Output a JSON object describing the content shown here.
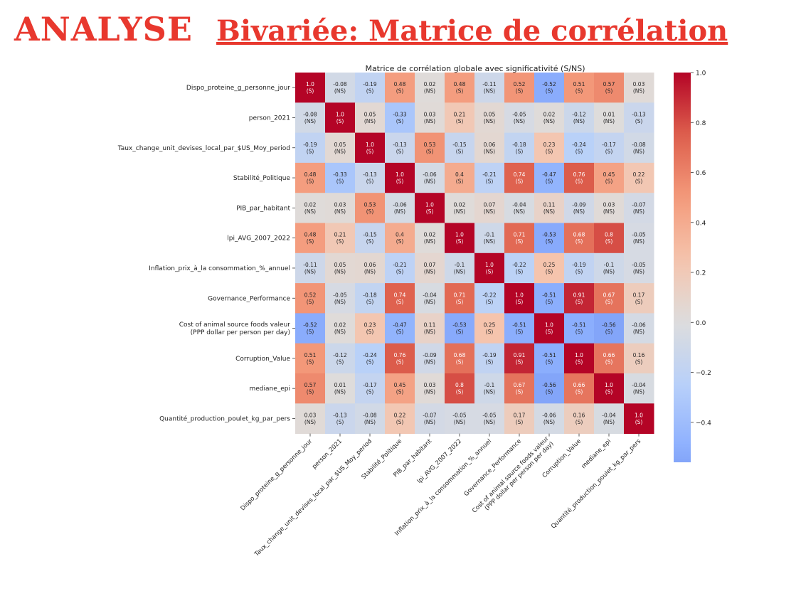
{
  "header": {
    "title": "ANALYSE",
    "subtitle": "Bivariée: Matrice de corrélation"
  },
  "chart_data": {
    "type": "heatmap",
    "title": "Matrice de corrélation globale avec significativité (S/NS)",
    "labels": [
      [
        "Dispo_proteine_g_personne_jour"
      ],
      [
        "person_2021"
      ],
      [
        "Taux_change_unit_devises_local_par_$US_Moy_period"
      ],
      [
        "Stabilité_Politique"
      ],
      [
        "PIB_par_habitant"
      ],
      [
        "lpi_AVG_2007_2022"
      ],
      [
        "Inflation_prix_à_la consommation_%_annuel"
      ],
      [
        "Governance_Performance"
      ],
      [
        "Cost of animal source foods valeur",
        "(PPP dollar per person per day)"
      ],
      [
        "Corruption_Value"
      ],
      [
        "mediane_epi"
      ],
      [
        "Quantité_production_poulet_kg_par_pers"
      ]
    ],
    "values": [
      [
        1.0,
        -0.08,
        -0.19,
        0.48,
        0.02,
        0.48,
        -0.11,
        0.52,
        -0.52,
        0.51,
        0.57,
        0.03
      ],
      [
        -0.08,
        1.0,
        0.05,
        -0.33,
        0.03,
        0.21,
        0.05,
        -0.05,
        0.02,
        -0.12,
        0.01,
        -0.13
      ],
      [
        -0.19,
        0.05,
        1.0,
        -0.13,
        0.53,
        -0.15,
        0.06,
        -0.18,
        0.23,
        -0.24,
        -0.17,
        -0.08
      ],
      [
        0.48,
        -0.33,
        -0.13,
        1.0,
        -0.06,
        0.4,
        -0.21,
        0.74,
        -0.47,
        0.76,
        0.45,
        0.22
      ],
      [
        0.02,
        0.03,
        0.53,
        -0.06,
        1.0,
        0.02,
        0.07,
        -0.04,
        0.11,
        -0.09,
        0.03,
        -0.07
      ],
      [
        0.48,
        0.21,
        -0.15,
        0.4,
        0.02,
        1.0,
        -0.1,
        0.71,
        -0.53,
        0.68,
        0.8,
        -0.05
      ],
      [
        -0.11,
        0.05,
        0.06,
        -0.21,
        0.07,
        -0.1,
        1.0,
        -0.22,
        0.25,
        -0.19,
        -0.1,
        -0.05
      ],
      [
        0.52,
        -0.05,
        -0.18,
        0.74,
        -0.04,
        0.71,
        -0.22,
        1.0,
        -0.51,
        0.91,
        0.67,
        0.17
      ],
      [
        -0.52,
        0.02,
        0.23,
        -0.47,
        0.11,
        -0.53,
        0.25,
        -0.51,
        1.0,
        -0.51,
        -0.56,
        -0.06
      ],
      [
        0.51,
        -0.12,
        -0.24,
        0.76,
        -0.09,
        0.68,
        -0.19,
        0.91,
        -0.51,
        1.0,
        0.66,
        0.16
      ],
      [
        0.57,
        0.01,
        -0.17,
        0.45,
        0.03,
        0.8,
        -0.1,
        0.67,
        -0.56,
        0.66,
        1.0,
        -0.04
      ],
      [
        0.03,
        -0.13,
        -0.08,
        0.22,
        -0.07,
        -0.05,
        -0.05,
        0.17,
        -0.06,
        0.16,
        -0.04,
        1.0
      ]
    ],
    "significance": [
      [
        "S",
        "NS",
        "S",
        "S",
        "NS",
        "S",
        "NS",
        "S",
        "S",
        "S",
        "S",
        "NS"
      ],
      [
        "NS",
        "S",
        "NS",
        "S",
        "NS",
        "S",
        "NS",
        "NS",
        "NS",
        "NS",
        "NS",
        "S"
      ],
      [
        "S",
        "NS",
        "S",
        "S",
        "S",
        "S",
        "NS",
        "S",
        "S",
        "S",
        "S",
        "NS"
      ],
      [
        "S",
        "S",
        "S",
        "S",
        "NS",
        "S",
        "S",
        "S",
        "S",
        "S",
        "S",
        "S"
      ],
      [
        "NS",
        "NS",
        "S",
        "NS",
        "S",
        "NS",
        "NS",
        "NS",
        "NS",
        "NS",
        "NS",
        "NS"
      ],
      [
        "S",
        "S",
        "S",
        "S",
        "NS",
        "S",
        "NS",
        "S",
        "S",
        "S",
        "S",
        "NS"
      ],
      [
        "NS",
        "NS",
        "NS",
        "S",
        "NS",
        "NS",
        "S",
        "S",
        "S",
        "S",
        "NS",
        "NS"
      ],
      [
        "S",
        "NS",
        "S",
        "S",
        "NS",
        "S",
        "S",
        "S",
        "S",
        "S",
        "S",
        "S"
      ],
      [
        "S",
        "NS",
        "S",
        "S",
        "NS",
        "S",
        "S",
        "S",
        "S",
        "S",
        "S",
        "NS"
      ],
      [
        "S",
        "S",
        "S",
        "S",
        "NS",
        "S",
        "S",
        "S",
        "S",
        "S",
        "S",
        "S"
      ],
      [
        "S",
        "NS",
        "S",
        "S",
        "NS",
        "S",
        "NS",
        "S",
        "S",
        "S",
        "S",
        "NS"
      ],
      [
        "NS",
        "S",
        "NS",
        "S",
        "NS",
        "NS",
        "NS",
        "S",
        "NS",
        "S",
        "NS",
        "S"
      ]
    ],
    "colormap": "coolwarm",
    "colorbar": {
      "range": [
        -0.56,
        1.0
      ],
      "ticks": [
        -0.4,
        -0.2,
        0.0,
        0.2,
        0.4,
        0.6,
        0.8,
        1.0
      ],
      "tick_labels": [
        "−0.4",
        "−0.2",
        "0.0",
        "0.2",
        "0.4",
        "0.6",
        "0.8",
        "1.0"
      ]
    },
    "colors": {
      "low": "#3b4cc0",
      "mid": "#dddddd",
      "high": "#b40426",
      "header": "#e8382e"
    }
  }
}
